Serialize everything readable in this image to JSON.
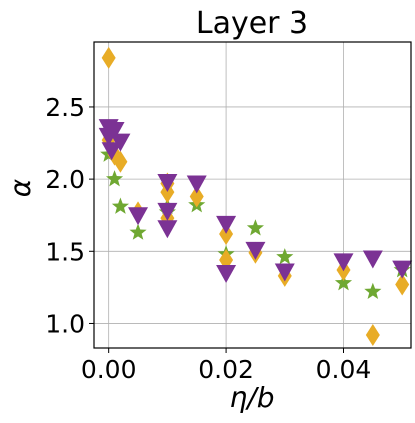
{
  "chart_data": {
    "type": "scatter",
    "title": "Layer 3",
    "xlabel": "η/b",
    "ylabel": "α",
    "xlim": [
      -0.0025,
      0.0515
    ],
    "ylim": [
      0.83,
      2.95
    ],
    "xticks": [
      0.0,
      0.02,
      0.04
    ],
    "xtick_labels": [
      "0.00",
      "0.02",
      "0.04"
    ],
    "yticks": [
      1.0,
      1.5,
      2.0,
      2.5
    ],
    "ytick_labels": [
      "1.0",
      "1.5",
      "2.0",
      "2.5"
    ],
    "grid": true,
    "legend": "none",
    "series": [
      {
        "marker": "star",
        "color": "#6fa832",
        "points": [
          {
            "x": 0.0,
            "y": 2.17
          },
          {
            "x": 0.001,
            "y": 2.0
          },
          {
            "x": 0.002,
            "y": 1.81
          },
          {
            "x": 0.005,
            "y": 1.63
          },
          {
            "x": 0.01,
            "y": 1.81
          },
          {
            "x": 0.01,
            "y": 1.77
          },
          {
            "x": 0.015,
            "y": 1.82
          },
          {
            "x": 0.02,
            "y": 1.48
          },
          {
            "x": 0.025,
            "y": 1.66
          },
          {
            "x": 0.03,
            "y": 1.46
          },
          {
            "x": 0.04,
            "y": 1.28
          },
          {
            "x": 0.045,
            "y": 1.22
          },
          {
            "x": 0.05,
            "y": 1.37
          }
        ]
      },
      {
        "marker": "diamond",
        "color": "#e8ac26",
        "points": [
          {
            "x": 0.0,
            "y": 2.84
          },
          {
            "x": 0.0,
            "y": 2.33
          },
          {
            "x": 0.0,
            "y": 2.27
          },
          {
            "x": 0.001,
            "y": 2.17
          },
          {
            "x": 0.002,
            "y": 2.12
          },
          {
            "x": 0.005,
            "y": 1.77
          },
          {
            "x": 0.01,
            "y": 1.97
          },
          {
            "x": 0.01,
            "y": 1.91
          },
          {
            "x": 0.01,
            "y": 1.73
          },
          {
            "x": 0.015,
            "y": 1.88
          },
          {
            "x": 0.02,
            "y": 1.62
          },
          {
            "x": 0.02,
            "y": 1.44
          },
          {
            "x": 0.025,
            "y": 1.49
          },
          {
            "x": 0.03,
            "y": 1.33
          },
          {
            "x": 0.04,
            "y": 1.37
          },
          {
            "x": 0.045,
            "y": 0.92
          },
          {
            "x": 0.05,
            "y": 1.27
          }
        ]
      },
      {
        "marker": "triangle-down",
        "color": "#7b3294",
        "points": [
          {
            "x": 0.0,
            "y": 2.36
          },
          {
            "x": 0.0,
            "y": 2.3
          },
          {
            "x": 0.0005,
            "y": 2.2
          },
          {
            "x": 0.001,
            "y": 2.34
          },
          {
            "x": 0.002,
            "y": 2.26
          },
          {
            "x": 0.005,
            "y": 1.75
          },
          {
            "x": 0.01,
            "y": 1.98
          },
          {
            "x": 0.01,
            "y": 1.78
          },
          {
            "x": 0.01,
            "y": 1.66
          },
          {
            "x": 0.015,
            "y": 1.97
          },
          {
            "x": 0.02,
            "y": 1.69
          },
          {
            "x": 0.02,
            "y": 1.35
          },
          {
            "x": 0.025,
            "y": 1.51
          },
          {
            "x": 0.03,
            "y": 1.36
          },
          {
            "x": 0.04,
            "y": 1.43
          },
          {
            "x": 0.045,
            "y": 1.45
          },
          {
            "x": 0.05,
            "y": 1.38
          }
        ]
      }
    ]
  }
}
